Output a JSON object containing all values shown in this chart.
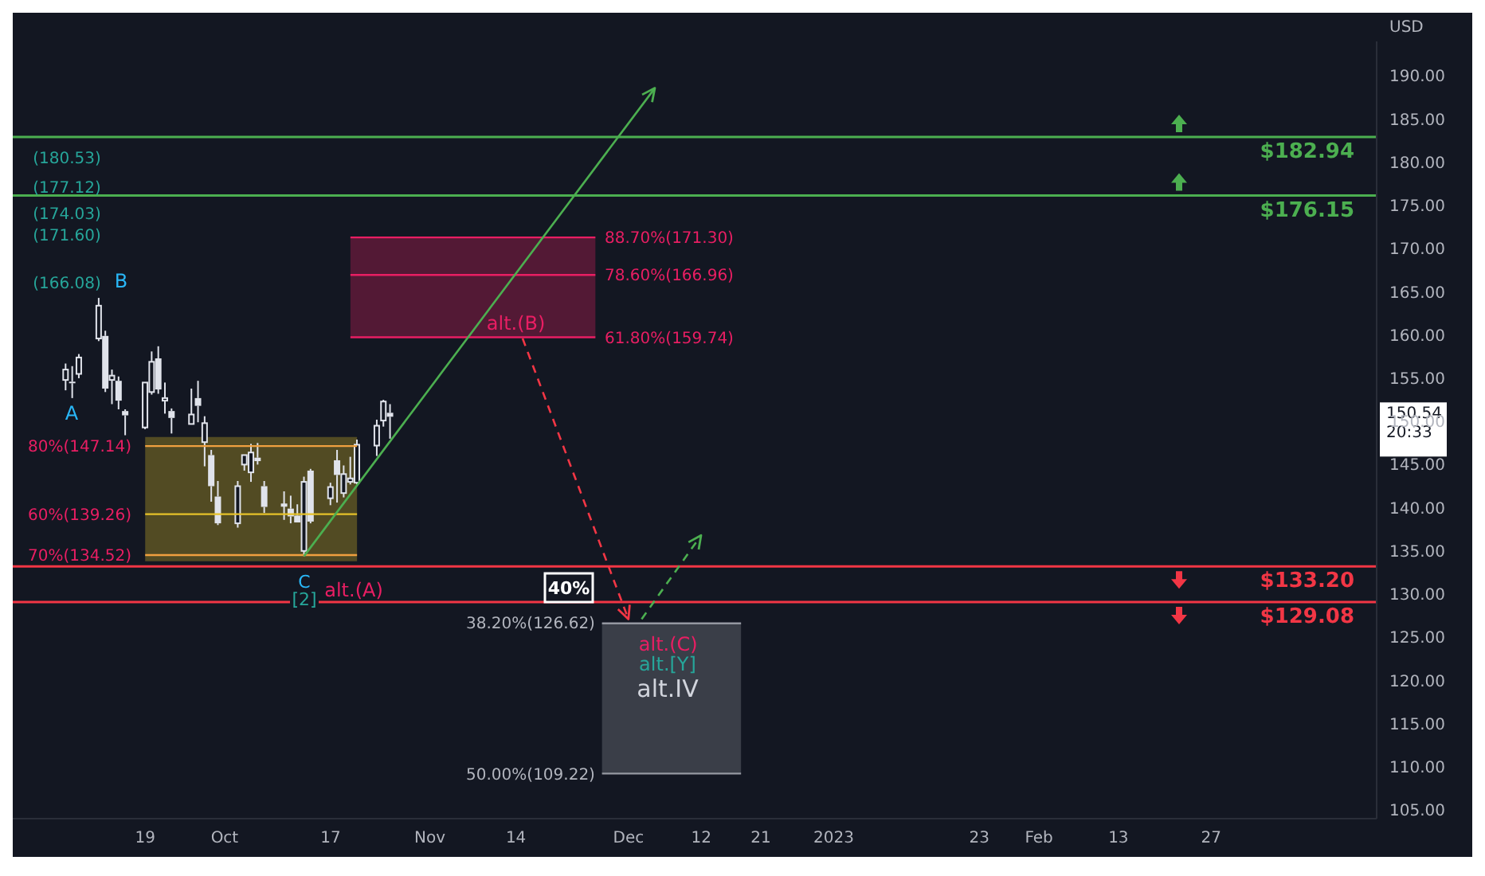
{
  "chart_data": {
    "type": "candlestick",
    "ylabel": "USD",
    "color": "#e0e3eb",
    "x": [
      "2022-09-07",
      "2022-09-08",
      "2022-09-09",
      "2022-09-12",
      "2022-09-13",
      "2022-09-14",
      "2022-09-15",
      "2022-09-16",
      "2022-09-19",
      "2022-09-20",
      "2022-09-21",
      "2022-09-22",
      "2022-09-23",
      "2022-09-26",
      "2022-09-27",
      "2022-09-28",
      "2022-09-29",
      "2022-09-30",
      "2022-10-03",
      "2022-10-04",
      "2022-10-05",
      "2022-10-06",
      "2022-10-07",
      "2022-10-10",
      "2022-10-11",
      "2022-10-12",
      "2022-10-13",
      "2022-10-14",
      "2022-10-17",
      "2022-10-18",
      "2022-10-19",
      "2022-10-20",
      "2022-10-21",
      "2022-10-24",
      "2022-10-25",
      "2022-10-26"
    ],
    "ohlc": [
      [
        154.8,
        156.7,
        153.6,
        156.0
      ],
      [
        154.6,
        156.4,
        152.7,
        154.5
      ],
      [
        155.5,
        157.8,
        155.0,
        157.4
      ],
      [
        159.6,
        164.3,
        159.3,
        163.4
      ],
      [
        159.9,
        160.5,
        153.4,
        153.8
      ],
      [
        154.8,
        156.0,
        152.0,
        155.3
      ],
      [
        154.7,
        155.2,
        151.4,
        152.4
      ],
      [
        151.2,
        151.4,
        148.4,
        150.7
      ],
      [
        149.3,
        154.6,
        149.1,
        154.5
      ],
      [
        153.4,
        158.1,
        153.1,
        156.9
      ],
      [
        157.3,
        158.7,
        153.2,
        153.7
      ],
      [
        152.4,
        154.5,
        150.9,
        152.7
      ],
      [
        151.2,
        151.5,
        148.6,
        150.4
      ],
      [
        149.7,
        153.8,
        149.6,
        150.8
      ],
      [
        152.7,
        154.7,
        149.9,
        151.8
      ],
      [
        147.6,
        150.6,
        144.8,
        149.8
      ],
      [
        146.1,
        146.7,
        140.7,
        142.5
      ],
      [
        141.3,
        143.1,
        138.0,
        138.2
      ],
      [
        138.2,
        143.1,
        137.7,
        142.5
      ],
      [
        145.0,
        146.2,
        144.3,
        146.1
      ],
      [
        144.1,
        147.4,
        143.0,
        146.4
      ],
      [
        145.8,
        147.5,
        145.0,
        145.4
      ],
      [
        142.5,
        143.1,
        139.4,
        140.1
      ],
      [
        140.4,
        141.9,
        138.6,
        140.4
      ],
      [
        139.9,
        141.4,
        138.2,
        139.0
      ],
      [
        139.1,
        140.4,
        138.2,
        138.3
      ],
      [
        135.0,
        143.6,
        134.4,
        143.0
      ],
      [
        144.3,
        144.5,
        138.2,
        138.4
      ],
      [
        141.1,
        142.9,
        140.3,
        142.4
      ],
      [
        145.5,
        146.7,
        140.6,
        143.8
      ],
      [
        141.7,
        144.9,
        141.2,
        143.9
      ],
      [
        143.0,
        145.9,
        142.7,
        143.4
      ],
      [
        142.9,
        147.9,
        142.7,
        147.3
      ],
      [
        147.2,
        150.2,
        146.0,
        149.5
      ],
      [
        150.1,
        152.5,
        149.4,
        152.3
      ],
      [
        151.0,
        152.0,
        148.0,
        150.54
      ]
    ],
    "series": [
      {
        "type": "line",
        "x": [
          "2022-10-20",
          "2022-11-26"
        ],
        "values": [
          166.96,
          166.96
        ],
        "lower": [
          159.74,
          159.74
        ],
        "upper": [
          171.3,
          171.3
        ],
        "color": "#e91e63"
      },
      {
        "type": "line",
        "x": [
          "2022-10-20",
          "2022-11-26"
        ],
        "values": [
          171.3,
          171.3
        ],
        "color": "#e91e63"
      },
      {
        "type": "line",
        "x": [
          "2022-10-20",
          "2022-11-26"
        ],
        "values": [
          159.74,
          159.74
        ],
        "color": "#e91e63"
      },
      {
        "type": "line",
        "x": [
          "2022-09-19",
          "2022-10-21"
        ],
        "values": [
          139.26,
          139.26
        ],
        "lower": [
          133.8,
          133.8
        ],
        "upper": [
          148.2,
          148.2
        ],
        "color": "#e6c229"
      },
      {
        "type": "line",
        "x": [
          "2022-09-19",
          "2022-10-21"
        ],
        "values": [
          147.14,
          147.14
        ],
        "color": "#f0a040"
      },
      {
        "type": "line",
        "x": [
          "2022-09-19",
          "2022-10-21"
        ],
        "values": [
          134.52,
          134.52
        ],
        "color": "#f0a040"
      },
      {
        "type": "line",
        "x": [
          "2022-11-27",
          "2022-12-18"
        ],
        "values": [
          126.62,
          126.62
        ],
        "lower": [
          109.22,
          109.22
        ],
        "upper": [
          126.62,
          126.62
        ],
        "color": "#9598a1"
      },
      {
        "type": "line",
        "x": [
          "2022-11-27",
          "2022-12-18"
        ],
        "values": [
          109.22,
          109.22
        ],
        "color": "#9598a1"
      }
    ],
    "ref_lines": [
      {
        "axis": "y",
        "value": 182.94,
        "label": "$182.94",
        "color": "#4caf50"
      },
      {
        "axis": "y",
        "value": 176.15,
        "label": "$176.15",
        "color": "#4caf50"
      },
      {
        "axis": "y",
        "value": 133.2,
        "label": "$133.20",
        "color": "#f23645"
      },
      {
        "axis": "y",
        "value": 129.08,
        "label": "$129.08",
        "color": "#f23645"
      }
    ],
    "annotations": [
      "(180.53)",
      "(177.12)",
      "(174.03)",
      "(171.60)",
      "(166.08)",
      "B",
      "A",
      "80%(147.14)",
      "60%(139.26)",
      "70%(134.52)",
      "C",
      "[2]",
      "alt.(A)",
      {
        "text": "alt.(B)",
        "x": "2022-11-14",
        "y": 159.74
      },
      "88.70%(171.30)",
      "78.60%(166.96)",
      "61.80%(159.74)",
      "40%",
      "38.20%(126.62)",
      "50.00%(109.22)",
      {
        "text": "alt.(C)",
        "x": "2022-12-07",
        "y": 126.62
      },
      "alt.[Y]",
      "alt.IV",
      "150.54",
      "20:33"
    ],
    "xlim": [
      "2022-08-30",
      "2023-03-24"
    ],
    "xticks": [
      {
        "value": "2022-09-19",
        "label": "19"
      },
      {
        "value": "2022-10-01",
        "label": "Oct"
      },
      {
        "value": "2022-10-17",
        "label": "17"
      },
      {
        "value": "2022-11-01",
        "label": "Nov"
      },
      {
        "value": "2022-11-14",
        "label": "14"
      },
      {
        "value": "2022-12-01",
        "label": "Dec"
      },
      {
        "value": "2022-12-12",
        "label": "12"
      },
      {
        "value": "2022-12-21",
        "label": "21"
      },
      {
        "value": "2023-01-01",
        "label": "2023"
      },
      {
        "value": "2023-01-23",
        "label": "23"
      },
      {
        "value": "2023-02-01",
        "label": "Feb"
      },
      {
        "value": "2023-02-13",
        "label": "13"
      },
      {
        "value": "2023-02-27",
        "label": "27"
      }
    ],
    "ylim": [
      104,
      194
    ],
    "yticks": [
      {
        "value": 105,
        "label": "105.00"
      },
      {
        "value": 110,
        "label": "110.00"
      },
      {
        "value": 115,
        "label": "115.00"
      },
      {
        "value": 120,
        "label": "120.00"
      },
      {
        "value": 125,
        "label": "125.00"
      },
      {
        "value": 130,
        "label": "130.00"
      },
      {
        "value": 135,
        "label": "135.00"
      },
      {
        "value": 140,
        "label": "140.00"
      },
      {
        "value": 145,
        "label": "145.00"
      },
      {
        "value": 150,
        "label": "150.00"
      },
      {
        "value": 155,
        "label": "155.00"
      },
      {
        "value": 160,
        "label": "160.00"
      },
      {
        "value": 165,
        "label": "165.00"
      },
      {
        "value": 170,
        "label": "170.00"
      },
      {
        "value": 175,
        "label": "175.00"
      },
      {
        "value": 180,
        "label": "180.00"
      },
      {
        "value": 185,
        "label": "185.00"
      },
      {
        "value": 190,
        "label": "190.00"
      }
    ]
  }
}
